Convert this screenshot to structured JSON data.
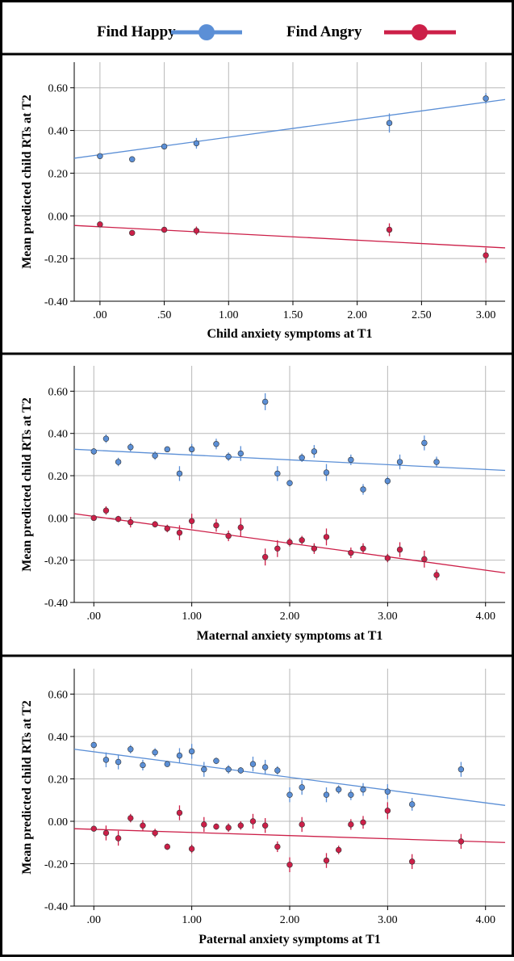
{
  "legend": {
    "items": [
      {
        "label": "Find Happy",
        "color": "#5b8fd6"
      },
      {
        "label": "Find Angry",
        "color": "#cc1f48"
      }
    ]
  },
  "chart_data": [
    {
      "type": "scatter",
      "xlabel": "Child anxiety symptoms at T1",
      "ylabel": "Mean predicted child RTs at T2",
      "xlim": [
        -0.2,
        3.15
      ],
      "ylim": [
        -0.4,
        0.72
      ],
      "x_ticks": [
        0,
        0.5,
        1,
        1.5,
        2,
        2.5,
        3
      ],
      "x_tick_labels": [
        ".00",
        ".50",
        "1.00",
        "1.50",
        "2.00",
        "2.50",
        "3.00"
      ],
      "y_ticks": [
        -0.4,
        -0.2,
        0,
        0.2,
        0.4,
        0.6
      ],
      "y_tick_labels": [
        "-0.40",
        "-0.20",
        "0.00",
        "0.20",
        "0.40",
        "0.60"
      ],
      "grid": true,
      "series": [
        {
          "name": "Find Happy",
          "color": "#5b8fd6",
          "x": [
            0,
            0.25,
            0.5,
            0.75,
            2.25,
            3
          ],
          "y": [
            0.28,
            0.265,
            0.325,
            0.34,
            0.435,
            0.55
          ],
          "err": [
            0.01,
            0.008,
            0.012,
            0.025,
            0.045,
            0.025
          ],
          "fit": [
            0.27,
            0.545
          ]
        },
        {
          "name": "Find Angry",
          "color": "#cc1f48",
          "x": [
            0,
            0.25,
            0.5,
            0.75,
            2.25,
            3
          ],
          "y": [
            -0.04,
            -0.08,
            -0.065,
            -0.07,
            -0.065,
            -0.185
          ],
          "err": [
            0.01,
            0.008,
            0.01,
            0.02,
            0.03,
            0.035
          ],
          "fit": [
            -0.045,
            -0.15
          ]
        }
      ]
    },
    {
      "type": "scatter",
      "xlabel": "Maternal anxiety symptoms at T1",
      "ylabel": "Mean predicted child RTs at T2",
      "xlim": [
        -0.2,
        4.2
      ],
      "ylim": [
        -0.4,
        0.72
      ],
      "x_ticks": [
        0,
        1,
        2,
        3,
        4
      ],
      "x_tick_labels": [
        ".00",
        "1.00",
        "2.00",
        "3.00",
        "4.00"
      ],
      "y_ticks": [
        -0.4,
        -0.2,
        0,
        0.2,
        0.4,
        0.6
      ],
      "y_tick_labels": [
        "-0.40",
        "-0.20",
        "0.00",
        "0.20",
        "0.40",
        "0.60"
      ],
      "grid": true,
      "series": [
        {
          "name": "Find Happy",
          "color": "#5b8fd6",
          "x": [
            0,
            0.125,
            0.25,
            0.375,
            0.625,
            0.75,
            0.875,
            1,
            1.25,
            1.375,
            1.5,
            1.75,
            1.875,
            2,
            2.125,
            2.25,
            2.375,
            2.625,
            2.75,
            3,
            3.125,
            3.375,
            3.5
          ],
          "y": [
            0.315,
            0.375,
            0.265,
            0.335,
            0.295,
            0.325,
            0.21,
            0.325,
            0.35,
            0.29,
            0.305,
            0.55,
            0.21,
            0.165,
            0.285,
            0.315,
            0.215,
            0.275,
            0.135,
            0.175,
            0.265,
            0.355,
            0.265
          ],
          "err": [
            0.015,
            0.02,
            0.02,
            0.02,
            0.02,
            0.012,
            0.035,
            0.025,
            0.025,
            0.02,
            0.035,
            0.04,
            0.035,
            0.015,
            0.02,
            0.03,
            0.04,
            0.025,
            0.025,
            0.02,
            0.035,
            0.035,
            0.025
          ],
          "fit": [
            0.325,
            0.225
          ]
        },
        {
          "name": "Find Angry",
          "color": "#cc1f48",
          "x": [
            0,
            0.125,
            0.25,
            0.375,
            0.625,
            0.75,
            0.875,
            1,
            1.25,
            1.375,
            1.5,
            1.75,
            1.875,
            2,
            2.125,
            2.25,
            2.375,
            2.625,
            2.75,
            3,
            3.125,
            3.375,
            3.5
          ],
          "y": [
            0,
            0.035,
            -0.005,
            -0.02,
            -0.03,
            -0.05,
            -0.07,
            -0.015,
            -0.035,
            -0.085,
            -0.045,
            -0.185,
            -0.145,
            -0.115,
            -0.105,
            -0.145,
            -0.09,
            -0.165,
            -0.145,
            -0.19,
            -0.15,
            -0.195,
            -0.27
          ],
          "err": [
            0.01,
            0.02,
            0.015,
            0.025,
            0.015,
            0.018,
            0.035,
            0.035,
            0.03,
            0.025,
            0.045,
            0.04,
            0.04,
            0.02,
            0.02,
            0.025,
            0.04,
            0.025,
            0.025,
            0.02,
            0.035,
            0.04,
            0.025
          ],
          "fit": [
            0.02,
            -0.26
          ]
        }
      ]
    },
    {
      "type": "scatter",
      "xlabel": "Paternal anxiety symptoms at T1",
      "ylabel": "Mean predicted child RTs at T2",
      "xlim": [
        -0.2,
        4.2
      ],
      "ylim": [
        -0.4,
        0.72
      ],
      "x_ticks": [
        0,
        1,
        2,
        3,
        4
      ],
      "x_tick_labels": [
        ".00",
        "1.00",
        "2.00",
        "3.00",
        "4.00"
      ],
      "y_ticks": [
        -0.4,
        -0.2,
        0,
        0.2,
        0.4,
        0.6
      ],
      "y_tick_labels": [
        "-0.40",
        "-0.20",
        "0.00",
        "0.20",
        "0.40",
        "0.60"
      ],
      "grid": true,
      "series": [
        {
          "name": "Find Happy",
          "color": "#5b8fd6",
          "x": [
            0,
            0.125,
            0.25,
            0.375,
            0.5,
            0.625,
            0.75,
            0.875,
            1,
            1.125,
            1.25,
            1.375,
            1.5,
            1.625,
            1.75,
            1.875,
            2,
            2.125,
            2.375,
            2.5,
            2.625,
            2.75,
            3,
            3.25,
            3.75
          ],
          "y": [
            0.36,
            0.29,
            0.28,
            0.34,
            0.265,
            0.325,
            0.27,
            0.31,
            0.33,
            0.245,
            0.285,
            0.245,
            0.24,
            0.27,
            0.255,
            0.24,
            0.125,
            0.16,
            0.125,
            0.15,
            0.125,
            0.15,
            0.14,
            0.08,
            0.245
          ],
          "err": [
            0.01,
            0.035,
            0.035,
            0.02,
            0.025,
            0.02,
            0.01,
            0.035,
            0.035,
            0.035,
            0.015,
            0.02,
            0.015,
            0.035,
            0.035,
            0.02,
            0.035,
            0.035,
            0.035,
            0.02,
            0.025,
            0.03,
            0.035,
            0.03,
            0.035
          ],
          "fit": [
            0.34,
            0.075
          ]
        },
        {
          "name": "Find Angry",
          "color": "#cc1f48",
          "x": [
            0,
            0.125,
            0.25,
            0.375,
            0.5,
            0.625,
            0.75,
            0.875,
            1,
            1.125,
            1.25,
            1.375,
            1.5,
            1.625,
            1.75,
            1.875,
            2,
            2.125,
            2.375,
            2.5,
            2.625,
            2.75,
            3,
            3.25,
            3.75
          ],
          "y": [
            -0.035,
            -0.055,
            -0.08,
            0.015,
            -0.02,
            -0.055,
            -0.12,
            0.04,
            -0.13,
            -0.015,
            -0.025,
            -0.03,
            -0.02,
            0,
            -0.02,
            -0.12,
            -0.205,
            -0.015,
            -0.185,
            -0.135,
            -0.015,
            -0.005,
            0.05,
            -0.19,
            -0.095
          ],
          "err": [
            0.01,
            0.035,
            0.035,
            0.02,
            0.025,
            0.02,
            0.015,
            0.035,
            0.02,
            0.035,
            0.015,
            0.02,
            0.02,
            0.035,
            0.035,
            0.025,
            0.035,
            0.035,
            0.035,
            0.02,
            0.025,
            0.03,
            0.04,
            0.035,
            0.035
          ],
          "fit": [
            -0.035,
            -0.1
          ]
        }
      ]
    }
  ]
}
